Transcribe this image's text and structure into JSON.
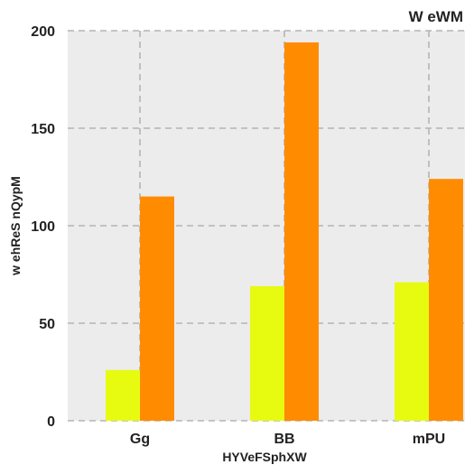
{
  "chart_data": {
    "type": "bar",
    "title": "W eWM",
    "xlabel": "HYVeFSphXW",
    "ylabel": "w ehReS nQypM",
    "categories": [
      "Gg",
      "BB",
      "mPU"
    ],
    "series": [
      {
        "values": [
          26,
          69,
          71
        ],
        "color": "#e6fb10"
      },
      {
        "values": [
          115,
          194,
          124
        ],
        "color": "#ff8c00"
      }
    ],
    "ylim": [
      0,
      200
    ],
    "yticks": [
      0,
      50,
      100,
      150,
      200
    ],
    "grid": true,
    "legend": "none",
    "colors": {
      "plot_background": "#ececec",
      "grid": "#b4b4b4",
      "text": "#222222"
    }
  }
}
